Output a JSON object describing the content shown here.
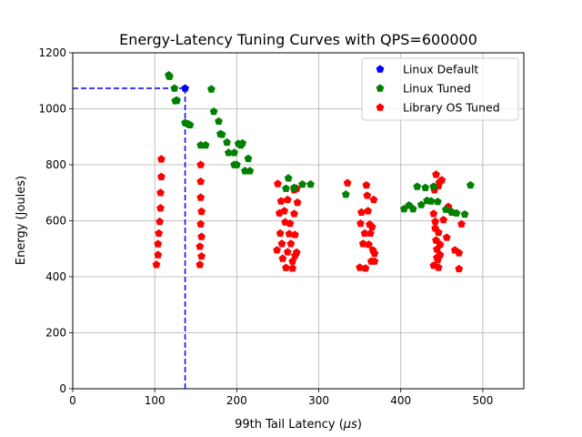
{
  "chart_data": {
    "type": "scatter",
    "title": "Energy-Latency Tuning Curves with QPS=600000",
    "xlabel_prefix": "99th Tail Latency (",
    "xlabel_unit": "μs",
    "xlabel_suffix": ")",
    "ylabel": "Energy (Joules)",
    "xlim": [
      0,
      550
    ],
    "ylim": [
      0,
      1200
    ],
    "xticks": [
      0,
      100,
      200,
      300,
      400,
      500
    ],
    "yticks": [
      0,
      200,
      400,
      600,
      800,
      1000,
      1200
    ],
    "grid": true,
    "legend_position": "top-right",
    "marker": "pentagon",
    "reference_lines": {
      "x": 137,
      "y": 1073,
      "color": "#0000ff",
      "style": "dashed"
    },
    "series": [
      {
        "name": "Linux Default",
        "color": "#0000ff",
        "points": [
          [
            137,
            1073
          ]
        ]
      },
      {
        "name": "Linux Tuned",
        "color": "#008000",
        "points": [
          [
            117,
            1120
          ],
          [
            118,
            1115
          ],
          [
            124,
            1073
          ],
          [
            127,
            1030
          ],
          [
            125,
            1028
          ],
          [
            137,
            950
          ],
          [
            141,
            945
          ],
          [
            143,
            942
          ],
          [
            156,
            870
          ],
          [
            162,
            870
          ],
          [
            169,
            1070
          ],
          [
            172,
            990
          ],
          [
            178,
            955
          ],
          [
            180,
            910
          ],
          [
            182,
            908
          ],
          [
            188,
            880
          ],
          [
            190,
            843
          ],
          [
            197,
            843
          ],
          [
            197,
            800
          ],
          [
            200,
            800
          ],
          [
            202,
            875
          ],
          [
            205,
            870
          ],
          [
            207,
            877
          ],
          [
            210,
            778
          ],
          [
            214,
            822
          ],
          [
            216,
            778
          ],
          [
            260,
            715
          ],
          [
            263,
            752
          ],
          [
            270,
            718
          ],
          [
            280,
            730
          ],
          [
            290,
            730
          ],
          [
            333,
            694
          ],
          [
            404,
            642
          ],
          [
            410,
            655
          ],
          [
            415,
            642
          ],
          [
            420,
            722
          ],
          [
            425,
            657
          ],
          [
            430,
            718
          ],
          [
            432,
            672
          ],
          [
            437,
            670
          ],
          [
            440,
            722
          ],
          [
            445,
            668
          ],
          [
            455,
            640
          ],
          [
            462,
            632
          ],
          [
            468,
            627
          ],
          [
            478,
            623
          ],
          [
            485,
            727
          ]
        ]
      },
      {
        "name": "Library OS Tuned",
        "color": "#ff0000",
        "points": [
          [
            108,
            820
          ],
          [
            108,
            757
          ],
          [
            107,
            700
          ],
          [
            107,
            645
          ],
          [
            106,
            597
          ],
          [
            105,
            555
          ],
          [
            104,
            517
          ],
          [
            104,
            478
          ],
          [
            102,
            443
          ],
          [
            156,
            800
          ],
          [
            156,
            740
          ],
          [
            156,
            683
          ],
          [
            157,
            633
          ],
          [
            156,
            588
          ],
          [
            157,
            543
          ],
          [
            155,
            508
          ],
          [
            157,
            473
          ],
          [
            155,
            443
          ],
          [
            250,
            732
          ],
          [
            252,
            627
          ],
          [
            254,
            670
          ],
          [
            249,
            495
          ],
          [
            253,
            555
          ],
          [
            255,
            518
          ],
          [
            259,
            595
          ],
          [
            258,
            635
          ],
          [
            256,
            465
          ],
          [
            260,
            432
          ],
          [
            262,
            488
          ],
          [
            262,
            675
          ],
          [
            265,
            590
          ],
          [
            264,
            553
          ],
          [
            266,
            518
          ],
          [
            268,
            455
          ],
          [
            268,
            430
          ],
          [
            270,
            625
          ],
          [
            270,
            710
          ],
          [
            271,
            475
          ],
          [
            271,
            550
          ],
          [
            273,
            715
          ],
          [
            274,
            665
          ],
          [
            273,
            487
          ],
          [
            335,
            735
          ],
          [
            350,
            433
          ],
          [
            351,
            590
          ],
          [
            352,
            630
          ],
          [
            354,
            518
          ],
          [
            356,
            555
          ],
          [
            357,
            430
          ],
          [
            358,
            727
          ],
          [
            359,
            690
          ],
          [
            360,
            635
          ],
          [
            361,
            515
          ],
          [
            362,
            587
          ],
          [
            363,
            555
          ],
          [
            364,
            455
          ],
          [
            365,
            578
          ],
          [
            366,
            495
          ],
          [
            367,
            675
          ],
          [
            368,
            483
          ],
          [
            368,
            455
          ],
          [
            440,
            625
          ],
          [
            440,
            440
          ],
          [
            441,
            710
          ],
          [
            442,
            597
          ],
          [
            442,
            573
          ],
          [
            443,
            765
          ],
          [
            443,
            530
          ],
          [
            444,
            498
          ],
          [
            444,
            468
          ],
          [
            445,
            460
          ],
          [
            446,
            725
          ],
          [
            446,
            558
          ],
          [
            446,
            433
          ],
          [
            447,
            737
          ],
          [
            448,
            515
          ],
          [
            448,
            478
          ],
          [
            450,
            745
          ],
          [
            452,
            603
          ],
          [
            456,
            540
          ],
          [
            458,
            650
          ],
          [
            462,
            630
          ],
          [
            466,
            495
          ],
          [
            471,
            485
          ],
          [
            471,
            428
          ],
          [
            474,
            588
          ]
        ]
      }
    ]
  }
}
